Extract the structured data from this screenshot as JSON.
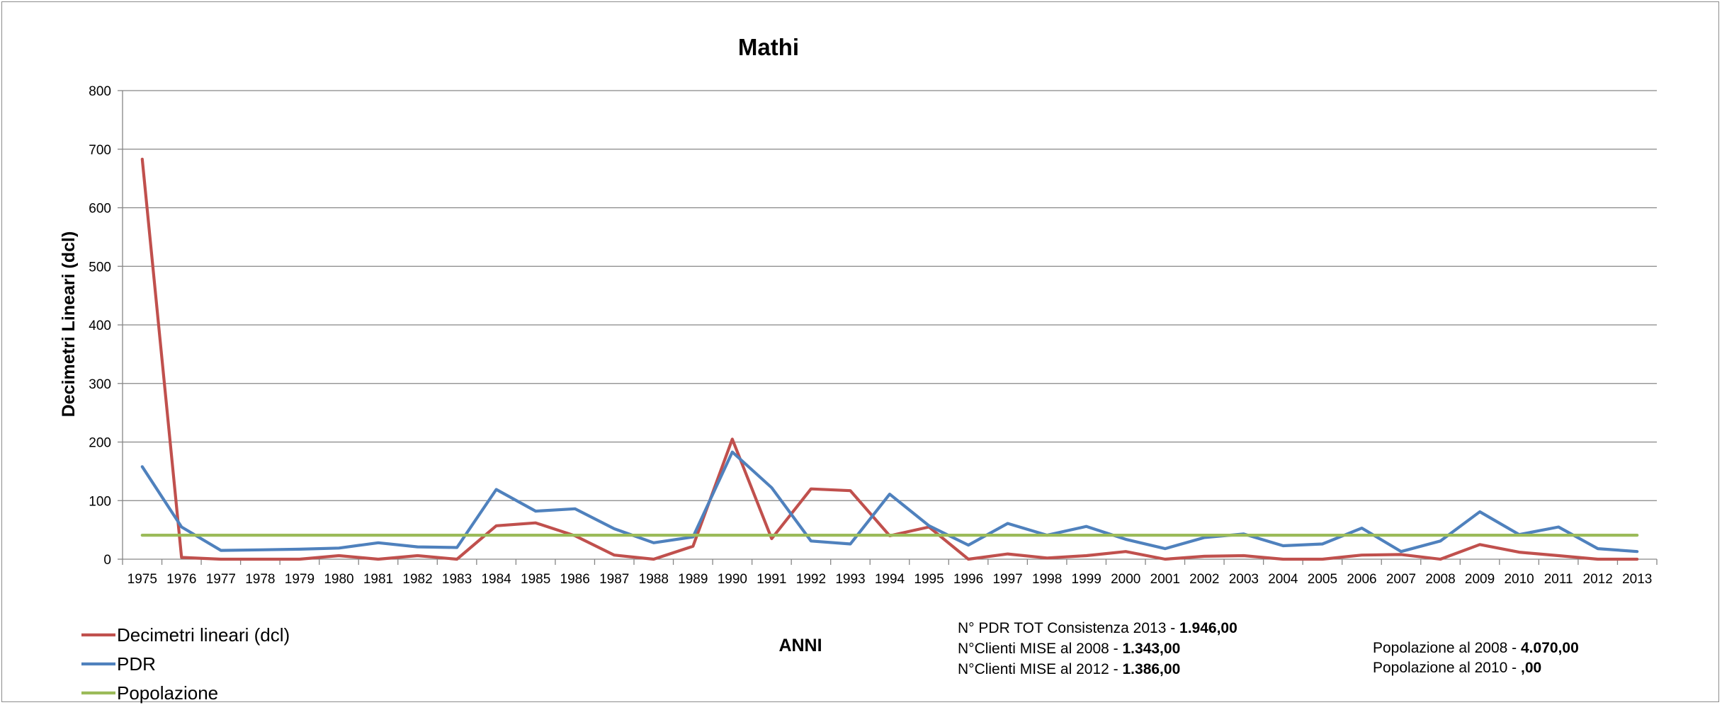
{
  "chart_data": {
    "type": "line",
    "title": "Mathi",
    "xlabel": "ANNI",
    "ylabel": "Decimetri Lineari (dcl)",
    "ylim": [
      0,
      800
    ],
    "yticks": [
      0,
      100,
      200,
      300,
      400,
      500,
      600,
      700,
      800
    ],
    "grid": true,
    "legend_position": "bottom-left",
    "categories": [
      "1975",
      "1976",
      "1977",
      "1978",
      "1979",
      "1980",
      "1981",
      "1982",
      "1983",
      "1984",
      "1985",
      "1986",
      "1987",
      "1988",
      "1989",
      "1990",
      "1991",
      "1992",
      "1993",
      "1994",
      "1995",
      "1996",
      "1997",
      "1998",
      "1999",
      "2000",
      "2001",
      "2002",
      "2003",
      "2004",
      "2005",
      "2006",
      "2007",
      "2008",
      "2009",
      "2010",
      "2011",
      "2012",
      "2013"
    ],
    "series": [
      {
        "name": "Decimetri lineari (dcl)",
        "color": "#c0504d",
        "values": [
          683,
          3,
          0,
          0,
          0,
          6,
          0,
          6,
          0,
          57,
          62,
          40,
          7,
          0,
          22,
          205,
          35,
          120,
          117,
          40,
          55,
          0,
          9,
          2,
          6,
          13,
          0,
          5,
          6,
          0,
          0,
          7,
          8,
          0,
          25,
          12,
          6,
          0,
          0
        ]
      },
      {
        "name": "PDR",
        "color": "#4f81bd",
        "values": [
          158,
          55,
          15,
          16,
          17,
          19,
          28,
          21,
          20,
          119,
          82,
          86,
          52,
          28,
          38,
          183,
          122,
          31,
          26,
          111,
          57,
          24,
          61,
          41,
          56,
          34,
          18,
          37,
          43,
          23,
          26,
          53,
          13,
          31,
          81,
          42,
          55,
          18,
          13
        ]
      },
      {
        "name": "Popolazione",
        "color": "#9bbb59",
        "values": [
          41,
          41,
          41,
          41,
          41,
          41,
          41,
          41,
          41,
          41,
          41,
          41,
          41,
          41,
          41,
          41,
          41,
          41,
          41,
          41,
          41,
          41,
          41,
          41,
          41,
          41,
          41,
          41,
          41,
          41,
          41,
          41,
          41,
          41,
          41,
          41,
          41,
          41,
          41
        ]
      }
    ]
  },
  "notes": {
    "pdr_tot_label": "N° PDR TOT Consistenza 2013 - ",
    "pdr_tot_value": "1.946,00",
    "clienti_2008_label": "N°Clienti MISE al 2008 - ",
    "clienti_2008_value": "1.343,00",
    "clienti_2012_label": "N°Clienti MISE al 2012 - ",
    "clienti_2012_value": "1.386,00",
    "pop_2008_label": "Popolazione al 2008 - ",
    "pop_2008_value": "4.070,00",
    "pop_2010_label": "Popolazione al 2010 - ",
    "pop_2010_value": ",00"
  }
}
